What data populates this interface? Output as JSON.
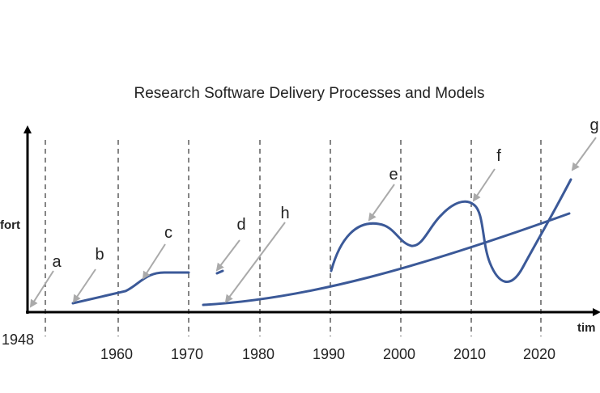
{
  "title": "Research Software Delivery Processes and Models",
  "axes": {
    "y_label": "fort",
    "x_label": "tim",
    "start_label": "1948"
  },
  "decades": [
    "1960",
    "1970",
    "1980",
    "1990",
    "2000",
    "2010",
    "2020"
  ],
  "markers": [
    "a",
    "b",
    "c",
    "d",
    "e",
    "f",
    "g",
    "h"
  ],
  "colors": {
    "curve": "#3b5998",
    "arrow": "#aaaaaa",
    "axis": "#000000",
    "gridline": "#444444"
  }
}
